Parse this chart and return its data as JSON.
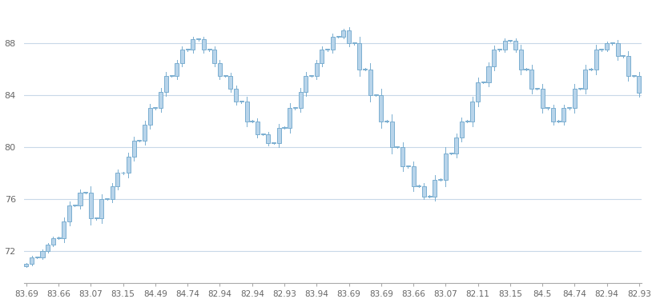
{
  "x_labels": [
    "83.69",
    "83.66",
    "83.07",
    "83.15",
    "84.49",
    "84.74",
    "82.94",
    "82.94",
    "82.93",
    "83.94",
    "83.69",
    "83.69",
    "83.66",
    "83.07",
    "82.11",
    "83.15",
    "84.5",
    "84.74",
    "82.94",
    "82.93"
  ],
  "y_ticks": [
    72,
    76,
    80,
    84,
    88
  ],
  "y_min": 69.5,
  "y_max": 91.0,
  "background_color": "#ffffff",
  "grid_color": "#c8d8e8",
  "candle_fill_color": "#b8d4ea",
  "candle_edge_color": "#7aaed0",
  "bar_width": 0.75
}
